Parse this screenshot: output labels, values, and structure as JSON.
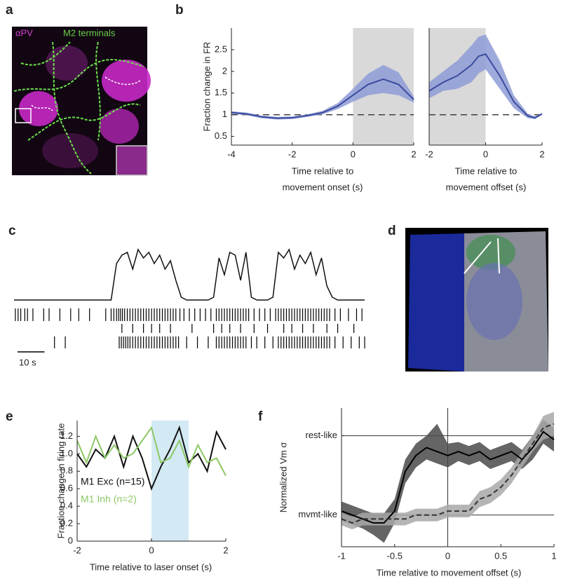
{
  "panel_labels": [
    "a",
    "b",
    "c",
    "d",
    "e",
    "f"
  ],
  "image_a": {
    "labels": [
      "αPV",
      "M2 terminals"
    ]
  },
  "chart_data": [
    {
      "type": "line",
      "ylabel": "Fraction change in FR",
      "xlabel": [
        "Time relative to",
        "movement onset (s)"
      ],
      "xlim": [
        -4,
        2
      ],
      "ylim": [
        0.3,
        3.0
      ],
      "xticks": [
        -4,
        -2,
        0,
        2
      ],
      "yticks": [
        0.5,
        1,
        1.5,
        2,
        2.5
      ],
      "shade": [
        0,
        2
      ],
      "shade_color": "#d9d9d9",
      "reference": 1,
      "x": [
        -4,
        -3.5,
        -3,
        -2.5,
        -2,
        -1.5,
        -1,
        -0.5,
        0,
        0.5,
        1,
        1.5,
        2
      ],
      "series": [
        {
          "color": "#3b4c9e",
          "band_color": "#8e9bd6",
          "values": [
            1.05,
            1.02,
            0.95,
            0.92,
            0.93,
            0.98,
            1.05,
            1.2,
            1.45,
            1.7,
            1.82,
            1.7,
            1.35
          ],
          "upper": [
            1.08,
            1.05,
            0.98,
            0.95,
            0.96,
            1.01,
            1.09,
            1.27,
            1.6,
            1.95,
            2.15,
            1.98,
            1.42
          ],
          "lower": [
            1.02,
            0.99,
            0.92,
            0.89,
            0.9,
            0.95,
            1.01,
            1.13,
            1.3,
            1.45,
            1.5,
            1.45,
            1.28
          ]
        }
      ]
    },
    {
      "type": "line",
      "xlabel": [
        "Time relative to",
        "movement offset (s)"
      ],
      "xlim": [
        -2,
        2
      ],
      "ylim": [
        0.3,
        3.0
      ],
      "xticks": [
        -2,
        0,
        2
      ],
      "shade": [
        -2,
        0
      ],
      "shade_color": "#d9d9d9",
      "reference": 1,
      "x": [
        -2,
        -1.5,
        -1,
        -0.5,
        -0.25,
        0,
        0.5,
        1,
        1.5,
        1.75,
        2
      ],
      "series": [
        {
          "color": "#3b4c9e",
          "band_color": "#8e9bd6",
          "values": [
            1.55,
            1.75,
            1.9,
            2.15,
            2.35,
            2.4,
            1.9,
            1.3,
            0.97,
            0.93,
            1.02
          ],
          "upper": [
            1.75,
            2.0,
            2.25,
            2.6,
            2.8,
            2.85,
            2.25,
            1.45,
            1.02,
            0.96,
            1.04
          ],
          "lower": [
            1.38,
            1.55,
            1.6,
            1.75,
            1.95,
            2.05,
            1.6,
            1.15,
            0.92,
            0.9,
            1.0
          ]
        }
      ]
    },
    {
      "type": "trace",
      "xlim": [
        0,
        130
      ],
      "ylim": [
        0,
        1
      ],
      "scale_bar": {
        "value": 10,
        "label": "10 s"
      },
      "x": [
        0,
        2,
        4,
        6,
        8,
        10,
        12,
        14,
        16,
        18,
        20,
        22,
        24,
        26,
        28,
        30,
        32,
        34,
        36,
        38,
        40,
        42,
        44,
        46,
        48,
        50,
        52,
        54,
        56,
        58,
        60,
        62,
        64,
        66,
        68,
        70,
        72,
        74,
        76,
        78,
        80,
        82,
        84,
        86,
        88,
        90,
        92,
        94,
        96,
        98,
        100,
        102,
        104,
        106,
        108,
        110,
        112,
        114,
        116,
        118,
        120,
        122,
        124,
        126,
        128,
        130
      ],
      "values": [
        0.05,
        0.05,
        0.05,
        0.05,
        0.05,
        0.05,
        0.05,
        0.05,
        0.05,
        0.05,
        0.05,
        0.05,
        0.05,
        0.05,
        0.05,
        0.05,
        0.05,
        0.05,
        0.05,
        0.7,
        0.85,
        0.9,
        0.6,
        0.95,
        0.8,
        0.9,
        0.7,
        0.85,
        0.6,
        0.75,
        0.4,
        0.1,
        0.05,
        0.05,
        0.05,
        0.05,
        0.05,
        0.1,
        0.8,
        0.5,
        0.9,
        0.85,
        0.4,
        0.9,
        0.1,
        0.05,
        0.05,
        0.05,
        0.1,
        0.9,
        0.8,
        0.95,
        0.6,
        0.85,
        0.7,
        0.9,
        0.5,
        0.8,
        0.3,
        0.1,
        0.05,
        0.05,
        0.05,
        0.05,
        0.05,
        0.05
      ],
      "raster": [
        [
          0.5,
          1.5,
          2.5,
          4,
          5,
          7,
          11,
          13,
          17,
          21,
          24,
          28,
          34,
          36,
          37,
          38,
          38.8,
          39.5,
          40.2,
          41,
          42,
          43,
          44,
          45,
          46,
          47,
          48,
          49,
          50,
          51,
          52,
          53,
          54,
          55,
          56,
          57,
          58,
          59,
          60,
          61.5,
          63,
          65,
          67,
          69,
          71,
          73,
          75,
          76,
          77,
          78,
          79,
          80,
          81,
          82,
          83,
          84,
          85,
          86,
          87,
          89,
          91,
          93,
          95,
          97,
          98,
          99,
          100,
          101,
          102,
          103,
          104,
          105,
          106,
          107,
          108,
          109,
          110,
          111,
          112,
          113,
          114,
          115,
          116,
          117,
          119,
          121,
          124,
          127,
          129
        ],
        [
          40,
          44,
          48,
          51,
          54,
          58,
          66,
          74,
          77,
          80,
          84,
          89,
          94,
          100,
          103,
          107,
          111,
          116,
          120,
          126
        ],
        [
          15,
          19,
          39,
          39.8,
          40.6,
          41.4,
          42.2,
          43,
          44,
          45,
          46,
          47,
          48,
          49,
          50,
          51,
          52,
          53,
          54,
          55,
          56,
          57,
          58,
          59,
          60,
          61,
          64,
          68,
          72,
          75,
          76,
          77,
          78,
          79,
          80,
          81,
          82,
          83,
          84,
          85,
          86,
          88,
          90,
          93,
          96,
          98,
          99,
          100,
          101,
          102,
          103,
          104,
          105,
          106,
          107,
          108,
          109,
          110,
          111,
          112,
          113,
          114,
          115,
          116,
          117,
          119,
          122,
          125,
          128,
          130
        ]
      ]
    },
    {
      "type": "line",
      "ylabel": "Fraction change in firing rate",
      "xlabel": [
        "Time relative to laser onset (s)"
      ],
      "xlim": [
        -2,
        2
      ],
      "ylim": [
        0,
        1.38
      ],
      "xticks": [
        -2,
        0,
        2
      ],
      "yticks": [
        0,
        0.2,
        0.4,
        0.6,
        0.8,
        {
          "value": 1,
          "label": "1.0"
        },
        1.2
      ],
      "shade": [
        0,
        1
      ],
      "shade_color": "#d3eaf4",
      "legend": "bottom-left",
      "x": [
        -2,
        -1.75,
        -1.5,
        -1.25,
        -1,
        -0.75,
        -0.5,
        -0.25,
        0,
        0.25,
        0.5,
        0.75,
        1,
        1.25,
        1.5,
        1.75,
        2
      ],
      "series": [
        {
          "name": "M1 Exc (n=15)",
          "color": "#111111",
          "values": [
            1.0,
            0.85,
            1.05,
            0.95,
            1.2,
            0.85,
            1.2,
            0.95,
            0.6,
            0.85,
            1.05,
            1.3,
            0.9,
            1.0,
            0.8,
            1.25,
            1.05
          ]
        },
        {
          "name": "M1 Inh (n=2)",
          "color": "#8cc865",
          "values": [
            1.15,
            0.9,
            1.2,
            0.95,
            1.1,
            0.95,
            1.0,
            1.15,
            1.3,
            0.9,
            0.95,
            1.15,
            0.85,
            1.1,
            0.9,
            0.95,
            0.75
          ]
        }
      ]
    },
    {
      "type": "line",
      "ylabel": "Normalized Vm σ",
      "xlabel": [
        "Time relative to movement offset (s)"
      ],
      "xlim": [
        -1,
        1
      ],
      "ylim": [
        -0.4,
        1.35
      ],
      "xticks": [
        -1,
        -0.5,
        0,
        0.5,
        1
      ],
      "yticks": [
        {
          "value": 1,
          "label": "rest-like"
        },
        {
          "value": 0,
          "label": "mvmt-like"
        }
      ],
      "grid": true,
      "vline": 0,
      "x": [
        -1,
        -0.9,
        -0.8,
        -0.7,
        -0.6,
        -0.5,
        -0.4,
        -0.3,
        -0.2,
        -0.1,
        0,
        0.1,
        0.2,
        0.3,
        0.4,
        0.5,
        0.6,
        0.7,
        0.8,
        0.9,
        1
      ],
      "series": [
        {
          "color": "#000000",
          "band_color": "#4a4a4a",
          "values": [
            0.05,
            0.0,
            -0.05,
            -0.1,
            -0.1,
            0.05,
            0.55,
            0.75,
            0.85,
            0.8,
            0.75,
            0.8,
            0.75,
            0.8,
            0.7,
            0.75,
            0.8,
            0.7,
            0.85,
            1.05,
            0.95
          ],
          "upper": [
            0.17,
            0.12,
            0.07,
            0.02,
            0.02,
            0.2,
            0.7,
            0.9,
            1.0,
            1.15,
            0.9,
            0.92,
            0.87,
            0.92,
            0.82,
            0.87,
            0.92,
            0.82,
            1.0,
            1.2,
            1.1
          ],
          "lower": [
            -0.07,
            -0.12,
            -0.17,
            -0.25,
            -0.35,
            -0.1,
            0.4,
            0.6,
            0.7,
            0.65,
            0.6,
            0.68,
            0.63,
            0.68,
            0.58,
            0.63,
            0.68,
            0.58,
            0.7,
            0.9,
            0.8
          ]
        },
        {
          "color": "#333333",
          "band_color": "#a8a8a8",
          "dashed": true,
          "values": [
            -0.05,
            -0.1,
            -0.05,
            -0.05,
            -0.05,
            -0.05,
            -0.05,
            0.0,
            0.0,
            0.0,
            0.05,
            0.05,
            0.05,
            0.2,
            0.25,
            0.35,
            0.5,
            0.7,
            0.9,
            1.1,
            1.15
          ],
          "upper": [
            0.03,
            -0.02,
            0.03,
            0.03,
            0.03,
            0.03,
            0.03,
            0.08,
            0.08,
            0.08,
            0.13,
            0.13,
            0.13,
            0.3,
            0.35,
            0.45,
            0.6,
            0.8,
            1.0,
            1.25,
            1.3
          ],
          "lower": [
            -0.13,
            -0.18,
            -0.13,
            -0.13,
            -0.13,
            -0.13,
            -0.13,
            -0.08,
            -0.08,
            -0.08,
            -0.03,
            -0.03,
            -0.03,
            0.1,
            0.15,
            0.25,
            0.4,
            0.6,
            0.8,
            0.95,
            1.0
          ]
        }
      ]
    }
  ]
}
